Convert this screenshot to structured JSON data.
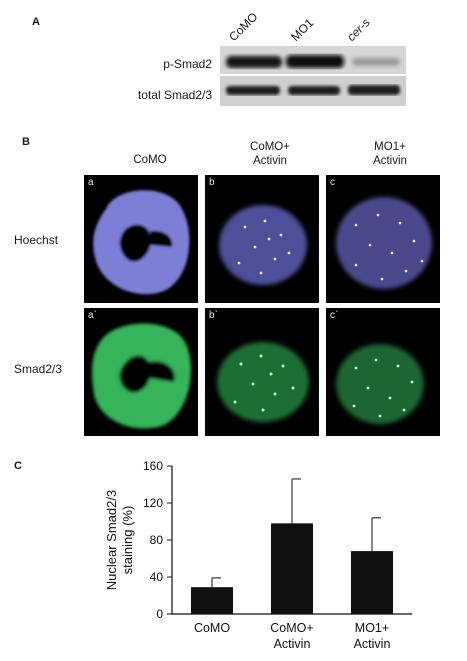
{
  "panel_a": {
    "letter": "A",
    "lanes": [
      "CoMO",
      "MO1",
      "cer-s"
    ],
    "rows": [
      "p-Smad2",
      "total Smad2/3"
    ]
  },
  "panel_b": {
    "letter": "B",
    "columns": [
      {
        "line1": "CoMO",
        "line2": ""
      },
      {
        "line1": "CoMO+",
        "line2": "Activin"
      },
      {
        "line1": "MO1+",
        "line2": "Activin"
      }
    ],
    "rows": [
      "Hoechst",
      "Smad2/3"
    ],
    "tile_labels": [
      [
        "a",
        "b",
        "c"
      ],
      [
        "a`",
        "b`",
        "c`"
      ]
    ],
    "colors": {
      "hoechst": "#8d8fe0",
      "smad": "#3fcf6a"
    }
  },
  "panel_c": {
    "letter": "C",
    "chart_data": {
      "type": "bar",
      "categories": [
        [
          "CoMO"
        ],
        [
          "CoMO+",
          "Activin"
        ],
        [
          "MO1+",
          "Activin"
        ]
      ],
      "values": [
        29,
        98,
        68
      ],
      "errors": [
        10,
        48,
        36
      ],
      "ylabel_lines": [
        "Nuclear Smad2/3",
        "staining (%)"
      ],
      "yticks": [
        0,
        40,
        80,
        120,
        160
      ],
      "ylim": [
        0,
        160
      ],
      "bar_color": "#111111"
    }
  }
}
